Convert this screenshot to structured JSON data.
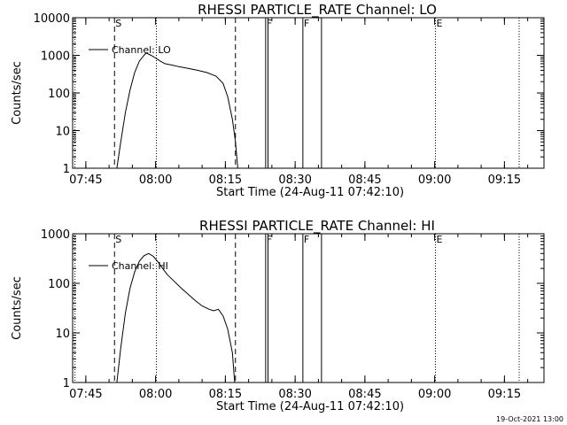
{
  "footer": {
    "timestamp": "19-Oct-2021 13:00"
  },
  "chart_data": [
    {
      "type": "line",
      "title": "RHESSI PARTICLE_RATE Channel: LO",
      "xlabel": "Start Time (24-Aug-11 07:42:10)",
      "ylabel": "Counts/sec",
      "yscale": "log",
      "xlim": [
        "07:42:10",
        "09:23:30"
      ],
      "ylim": [
        1,
        10000
      ],
      "x_ticks": [
        "07:45",
        "08:00",
        "08:15",
        "08:30",
        "08:45",
        "09:00",
        "09:15"
      ],
      "y_ticks": [
        "1",
        "10",
        "100",
        "1000",
        "10000"
      ],
      "legend_position": "top-left",
      "series": [
        {
          "name": "Channel: LO",
          "points": [
            [
              "07:51:40",
              1
            ],
            [
              "07:52:30",
              5
            ],
            [
              "07:53:30",
              30
            ],
            [
              "07:54:30",
              120
            ],
            [
              "07:55:30",
              350
            ],
            [
              "07:56:30",
              700
            ],
            [
              "07:57:30",
              1000
            ],
            [
              "07:58:00",
              1150
            ],
            [
              "07:59:00",
              1000
            ],
            [
              "08:00:00",
              850
            ],
            [
              "08:01:00",
              700
            ],
            [
              "08:02:00",
              600
            ],
            [
              "08:03:30",
              550
            ],
            [
              "08:05:00",
              500
            ],
            [
              "08:07:00",
              450
            ],
            [
              "08:09:00",
              400
            ],
            [
              "08:11:00",
              350
            ],
            [
              "08:13:00",
              280
            ],
            [
              "08:14:30",
              180
            ],
            [
              "08:15:30",
              80
            ],
            [
              "08:16:30",
              20
            ],
            [
              "08:17:10",
              5
            ],
            [
              "08:17:40",
              1
            ]
          ]
        }
      ],
      "markers": [
        {
          "label": "",
          "time": "07:42:40",
          "style": "dotted"
        },
        {
          "label": "S",
          "time": "07:51:10",
          "style": "dashed"
        },
        {
          "label": "",
          "time": "08:00:10",
          "style": "dotted"
        },
        {
          "label": "",
          "time": "08:17:10",
          "style": "dashed"
        },
        {
          "label": "F",
          "time": "08:23:40",
          "style": "solid"
        },
        {
          "label": "",
          "time": "08:24:10",
          "style": "solid"
        },
        {
          "label": "F",
          "time": "08:31:40",
          "style": "solid"
        },
        {
          "label": "",
          "time": "08:35:40",
          "style": "solid"
        },
        {
          "label": "E",
          "time": "09:00:10",
          "style": "dotted"
        },
        {
          "label": "",
          "time": "09:18:10",
          "style": "dotted"
        }
      ]
    },
    {
      "type": "line",
      "title": "RHESSI PARTICLE_RATE Channel: HI",
      "xlabel": "Start Time (24-Aug-11 07:42:10)",
      "ylabel": "Counts/sec",
      "yscale": "log",
      "xlim": [
        "07:42:10",
        "09:23:30"
      ],
      "ylim": [
        1,
        1000
      ],
      "x_ticks": [
        "07:45",
        "08:00",
        "08:15",
        "08:30",
        "08:45",
        "09:00",
        "09:15"
      ],
      "y_ticks": [
        "1",
        "10",
        "100",
        "1000"
      ],
      "legend_position": "top-left",
      "series": [
        {
          "name": "Channel: HI",
          "points": [
            [
              "07:51:40",
              1
            ],
            [
              "07:52:30",
              5
            ],
            [
              "07:53:30",
              25
            ],
            [
              "07:54:30",
              80
            ],
            [
              "07:55:30",
              170
            ],
            [
              "07:56:30",
              280
            ],
            [
              "07:57:30",
              360
            ],
            [
              "07:58:30",
              400
            ],
            [
              "07:59:30",
              350
            ],
            [
              "08:00:30",
              270
            ],
            [
              "08:01:30",
              200
            ],
            [
              "08:02:30",
              150
            ],
            [
              "08:04:00",
              110
            ],
            [
              "08:05:30",
              80
            ],
            [
              "08:07:00",
              60
            ],
            [
              "08:08:30",
              45
            ],
            [
              "08:10:00",
              35
            ],
            [
              "08:11:30",
              30
            ],
            [
              "08:12:30",
              28
            ],
            [
              "08:13:30",
              30
            ],
            [
              "08:14:30",
              22
            ],
            [
              "08:15:30",
              12
            ],
            [
              "08:16:30",
              4
            ],
            [
              "08:17:00",
              1
            ]
          ]
        }
      ],
      "markers": [
        {
          "label": "",
          "time": "07:42:40",
          "style": "dotted"
        },
        {
          "label": "S",
          "time": "07:51:10",
          "style": "dashed"
        },
        {
          "label": "",
          "time": "08:00:10",
          "style": "dotted"
        },
        {
          "label": "",
          "time": "08:17:10",
          "style": "dashed"
        },
        {
          "label": "F",
          "time": "08:23:40",
          "style": "solid"
        },
        {
          "label": "",
          "time": "08:24:10",
          "style": "solid"
        },
        {
          "label": "F",
          "time": "08:31:40",
          "style": "solid"
        },
        {
          "label": "",
          "time": "08:35:40",
          "style": "solid"
        },
        {
          "label": "E",
          "time": "09:00:10",
          "style": "dotted"
        },
        {
          "label": "",
          "time": "09:18:10",
          "style": "dotted"
        }
      ]
    }
  ]
}
